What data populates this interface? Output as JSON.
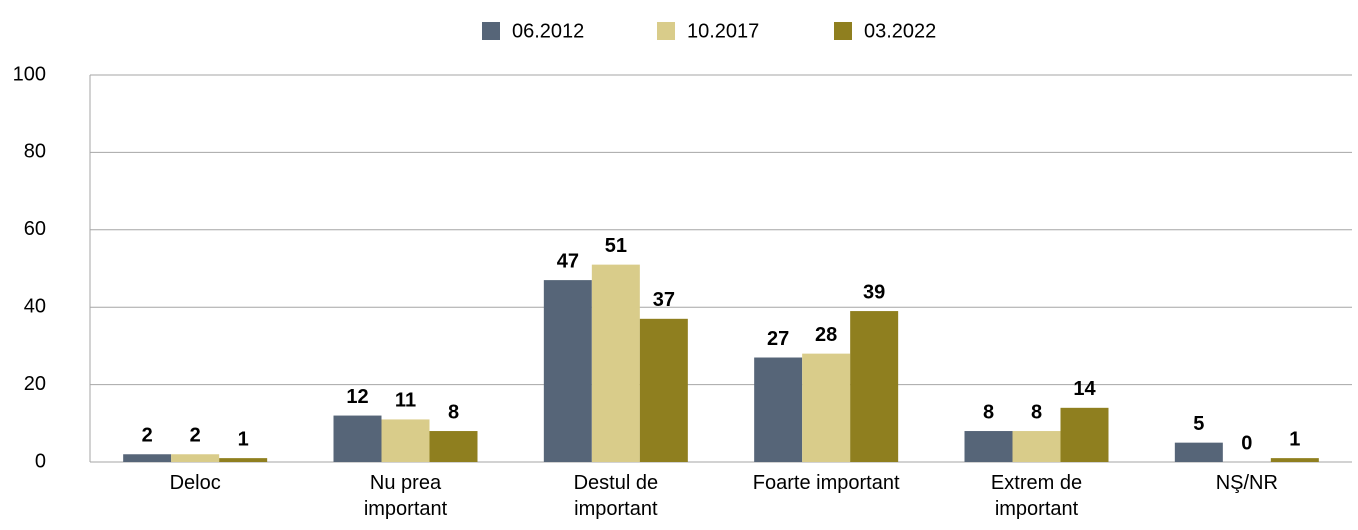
{
  "chart_data": {
    "type": "bar",
    "categories": [
      "Deloc",
      "Nu prea\nimportant",
      "Destul de\nimportant",
      "Foarte important",
      "Extrem de\nimportant",
      "NŞ/NR"
    ],
    "series": [
      {
        "name": "06.2012",
        "color": "#566578",
        "values": [
          2,
          12,
          47,
          27,
          8,
          5
        ]
      },
      {
        "name": "10.2017",
        "color": "#d9cc8a",
        "values": [
          2,
          11,
          51,
          28,
          8,
          0
        ]
      },
      {
        "name": "03.2022",
        "color": "#8f7f1f",
        "values": [
          1,
          8,
          37,
          39,
          14,
          1
        ]
      }
    ],
    "ylim": [
      0,
      100
    ],
    "yticks": [
      0,
      20,
      40,
      60,
      80,
      100
    ],
    "grid": true,
    "legend": "top"
  }
}
